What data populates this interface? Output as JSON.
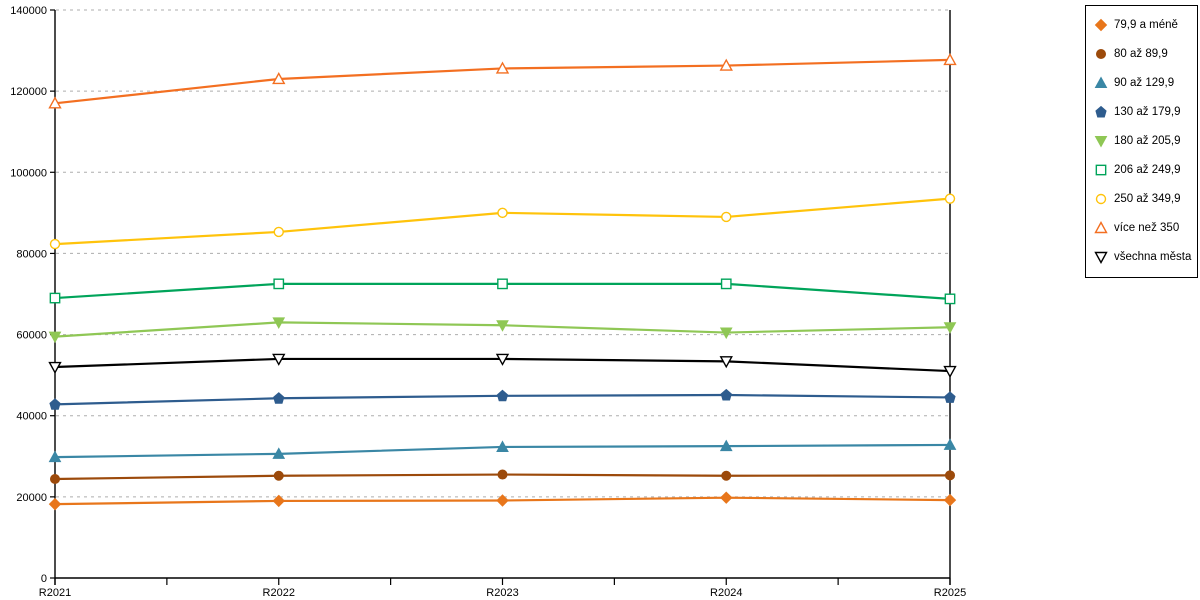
{
  "chart_data": {
    "type": "line",
    "title": "",
    "xlabel": "",
    "ylabel": "",
    "categories": [
      "R2021",
      "R2022",
      "R2023",
      "R2024",
      "R2025"
    ],
    "series": [
      {
        "name": "79,9 a méně",
        "color": "#E8761B",
        "marker": "diamond",
        "filled": true,
        "values": [
          18200,
          19000,
          19100,
          19800,
          19200
        ]
      },
      {
        "name": "80 až 89,9",
        "color": "#9C4A0B",
        "marker": "circle",
        "filled": true,
        "values": [
          24400,
          25200,
          25500,
          25200,
          25300
        ]
      },
      {
        "name": "90 až 129,9",
        "color": "#3A87A5",
        "marker": "triangle-up",
        "filled": true,
        "values": [
          29800,
          30600,
          32300,
          32500,
          32800
        ]
      },
      {
        "name": "130 až 179,9",
        "color": "#2E5C8E",
        "marker": "pentagon",
        "filled": true,
        "values": [
          42800,
          44300,
          44900,
          45100,
          44500
        ]
      },
      {
        "name": "180 až 205,9",
        "color": "#8FC755",
        "marker": "triangle-down",
        "filled": true,
        "values": [
          59500,
          63000,
          62300,
          60500,
          61800
        ]
      },
      {
        "name": "206 až 249,9",
        "color": "#00A45A",
        "marker": "square",
        "filled": false,
        "values": [
          69000,
          72500,
          72500,
          72500,
          68800
        ]
      },
      {
        "name": "250 až 349,9",
        "color": "#FFC30B",
        "marker": "circle",
        "filled": false,
        "values": [
          82300,
          85300,
          90000,
          89000,
          93500
        ]
      },
      {
        "name": "více než 350",
        "color": "#F36F21",
        "marker": "triangle-up",
        "filled": false,
        "values": [
          117000,
          123000,
          125600,
          126300,
          127700
        ]
      },
      {
        "name": "všechna města",
        "color": "#000000",
        "marker": "triangle-down",
        "filled": false,
        "values": [
          52000,
          54000,
          54000,
          53400,
          51000
        ]
      }
    ],
    "ylim": [
      0,
      140000
    ],
    "ytick_step": 20000,
    "ytick_labels": [
      "0",
      "20000",
      "40000",
      "60000",
      "80000",
      "100000",
      "120000",
      "140000"
    ],
    "grid": "horizontal-dashed",
    "gridline_color": "#ADADAD",
    "axis_color": "#000000",
    "legend_position": "right"
  }
}
